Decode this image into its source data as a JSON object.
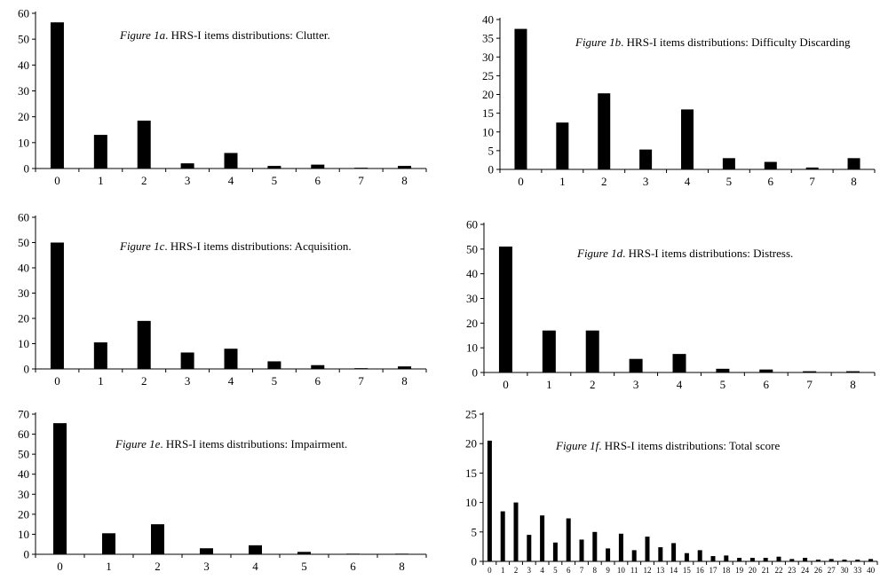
{
  "chart_data": [
    {
      "type": "bar",
      "title_italic": "Figure 1a",
      "title_rest": ". HRS-I items distributions: Clutter.",
      "categories": [
        "0",
        "1",
        "2",
        "3",
        "4",
        "5",
        "6",
        "7",
        "8"
      ],
      "values": [
        56.5,
        13,
        18.5,
        2,
        6,
        1,
        1.5,
        0.3,
        1
      ],
      "yticks": [
        "0",
        "10",
        "20",
        "30",
        "40",
        "50",
        "60"
      ],
      "ylim": [
        0,
        60
      ],
      "grid": false,
      "legend": false
    },
    {
      "type": "bar",
      "title_italic": "Figure 1b",
      "title_rest": ". HRS-I items distributions: Difficulty Discarding",
      "categories": [
        "0",
        "1",
        "2",
        "3",
        "4",
        "5",
        "6",
        "7",
        "8"
      ],
      "values": [
        37.5,
        12.5,
        20.3,
        5.3,
        16,
        3,
        2,
        0.5,
        3
      ],
      "yticks": [
        "0",
        "5",
        "10",
        "15",
        "20",
        "25",
        "30",
        "35",
        "40"
      ],
      "ylim": [
        0,
        40
      ],
      "grid": false,
      "legend": false
    },
    {
      "type": "bar",
      "title_italic": "Figure 1c",
      "title_rest": ". HRS-I items distributions: Acquisition.",
      "categories": [
        "0",
        "1",
        "2",
        "3",
        "4",
        "5",
        "6",
        "7",
        "8"
      ],
      "values": [
        50,
        10.5,
        19,
        6.5,
        8,
        3,
        1.5,
        0.3,
        1
      ],
      "yticks": [
        "0",
        "10",
        "20",
        "30",
        "40",
        "50",
        "60"
      ],
      "ylim": [
        0,
        60
      ],
      "grid": false,
      "legend": false
    },
    {
      "type": "bar",
      "title_italic": "Figure 1d",
      "title_rest": ". HRS-I items distributions: Distress.",
      "categories": [
        "0",
        "1",
        "2",
        "3",
        "4",
        "5",
        "6",
        "7",
        "8"
      ],
      "values": [
        51,
        17,
        17,
        5.5,
        7.5,
        1.5,
        1.2,
        0.5,
        0.5
      ],
      "yticks": [
        "0",
        "10",
        "20",
        "30",
        "40",
        "50",
        "60"
      ],
      "ylim": [
        0,
        60
      ],
      "grid": false,
      "legend": false
    },
    {
      "type": "bar",
      "title_italic": "Figure 1e",
      "title_rest": ". HRS-I items distributions: Impairment.",
      "categories": [
        "0",
        "1",
        "2",
        "3",
        "4",
        "5",
        "6",
        "8"
      ],
      "values": [
        65.5,
        10.5,
        15,
        3,
        4.5,
        1.2,
        0.3,
        0.3
      ],
      "yticks": [
        "0",
        "10",
        "20",
        "30",
        "40",
        "50",
        "60",
        "70"
      ],
      "ylim": [
        0,
        70
      ],
      "grid": false,
      "legend": false
    },
    {
      "type": "bar",
      "title_italic": "Figure 1f",
      "title_rest": ". HRS-I items distributions: Total score",
      "categories": [
        "0",
        "1",
        "2",
        "3",
        "4",
        "5",
        "6",
        "7",
        "8",
        "9",
        "10",
        "11",
        "12",
        "13",
        "14",
        "15",
        "16",
        "17",
        "18",
        "19",
        "20",
        "21",
        "22",
        "23",
        "24",
        "26",
        "27",
        "30",
        "33",
        "40"
      ],
      "values": [
        20.5,
        8.5,
        10,
        4.5,
        7.8,
        3.2,
        7.3,
        3.7,
        5,
        2.2,
        4.7,
        1.9,
        4.2,
        2.4,
        3.1,
        1.4,
        1.9,
        0.9,
        1,
        0.6,
        0.6,
        0.6,
        0.8,
        0.4,
        0.6,
        0.3,
        0.4,
        0.3,
        0.3,
        0.4
      ],
      "yticks": [
        "0",
        "5",
        "10",
        "15",
        "20",
        "25"
      ],
      "ylim": [
        0,
        25
      ],
      "grid": false,
      "legend": false
    }
  ]
}
